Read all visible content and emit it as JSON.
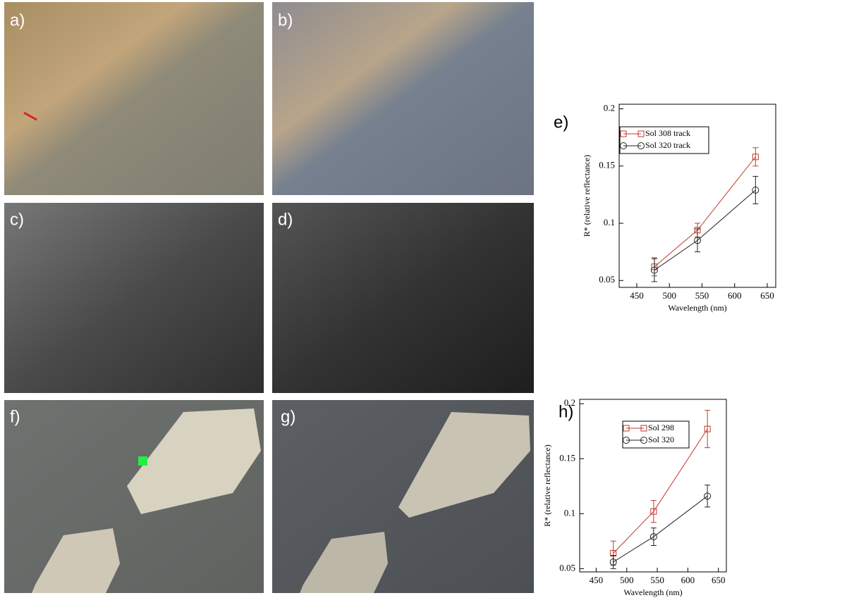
{
  "panels": {
    "labels": [
      "a)",
      "b)",
      "c)",
      "d)",
      "f)",
      "g)"
    ]
  },
  "chart_data": [
    {
      "type": "line",
      "label": "e)",
      "xlabel": "Wavelength (nm)",
      "ylabel": "R* (relative reflectance)",
      "x": [
        477,
        543,
        632
      ],
      "xlim": [
        423,
        663
      ],
      "xticks": [
        450,
        500,
        550,
        600,
        650
      ],
      "ylim": [
        0.044,
        0.204
      ],
      "yticks": [
        0.05,
        0.1,
        0.15,
        0.2
      ],
      "legend": "upper left",
      "series": [
        {
          "name": "Sol 308 track",
          "color": "#c0392b",
          "marker": "square",
          "values": [
            0.062,
            0.094,
            0.158
          ],
          "errors": [
            0.008,
            0.006,
            0.008
          ]
        },
        {
          "name": "Sol 320 track",
          "color": "#222222",
          "marker": "circle",
          "values": [
            0.059,
            0.085,
            0.129
          ],
          "errors": [
            0.01,
            0.01,
            0.012
          ]
        }
      ]
    },
    {
      "type": "line",
      "label": "h)",
      "xlabel": "Wavelength (nm)",
      "ylabel": "R* (relative reflectance)",
      "x": [
        478,
        544,
        632
      ],
      "xlim": [
        423,
        663
      ],
      "xticks": [
        450,
        500,
        550,
        600,
        650
      ],
      "ylim": [
        0.047,
        0.204
      ],
      "yticks": [
        0.05,
        0.1,
        0.15,
        0.2
      ],
      "legend": "upper left",
      "series": [
        {
          "name": "Sol 298",
          "color": "#c0392b",
          "marker": "square",
          "values": [
            0.064,
            0.102,
            0.177
          ],
          "errors": [
            0.011,
            0.01,
            0.017
          ]
        },
        {
          "name": "Sol 320",
          "color": "#222222",
          "marker": "circle",
          "values": [
            0.056,
            0.079,
            0.116
          ],
          "errors": [
            0.006,
            0.008,
            0.01
          ]
        }
      ]
    }
  ]
}
